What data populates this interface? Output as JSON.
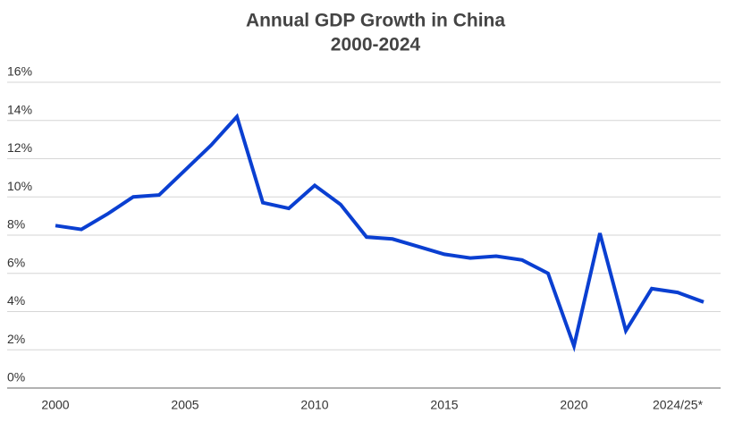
{
  "chart_data": {
    "type": "line",
    "title": "Annual GDP Growth in China",
    "subtitle": "2000-2024",
    "categories": [
      "2000",
      null,
      null,
      null,
      null,
      "2005",
      null,
      null,
      null,
      null,
      "2010",
      null,
      null,
      null,
      null,
      "2015",
      null,
      null,
      null,
      null,
      "2020",
      null,
      null,
      null,
      "2024/25*",
      null
    ],
    "values": [
      8.5,
      8.3,
      9.1,
      10.0,
      10.1,
      11.4,
      12.7,
      14.2,
      9.7,
      9.4,
      10.6,
      9.6,
      7.9,
      7.8,
      7.4,
      7.0,
      6.8,
      6.9,
      6.7,
      6.0,
      2.2,
      8.1,
      3.0,
      5.2,
      5.0,
      4.5
    ],
    "color": "#0a3fd1",
    "ylim": [
      0,
      16
    ],
    "yticks": [
      {
        "value": 0,
        "label": "0%"
      },
      {
        "value": 2,
        "label": "2%"
      },
      {
        "value": 4,
        "label": "4%"
      },
      {
        "value": 6,
        "label": "6%"
      },
      {
        "value": 8,
        "label": "8%"
      },
      {
        "value": 10,
        "label": "10%"
      },
      {
        "value": 12,
        "label": "12%"
      },
      {
        "value": 14,
        "label": "14%"
      },
      {
        "value": 16,
        "label": "16%"
      }
    ],
    "grid": true
  }
}
